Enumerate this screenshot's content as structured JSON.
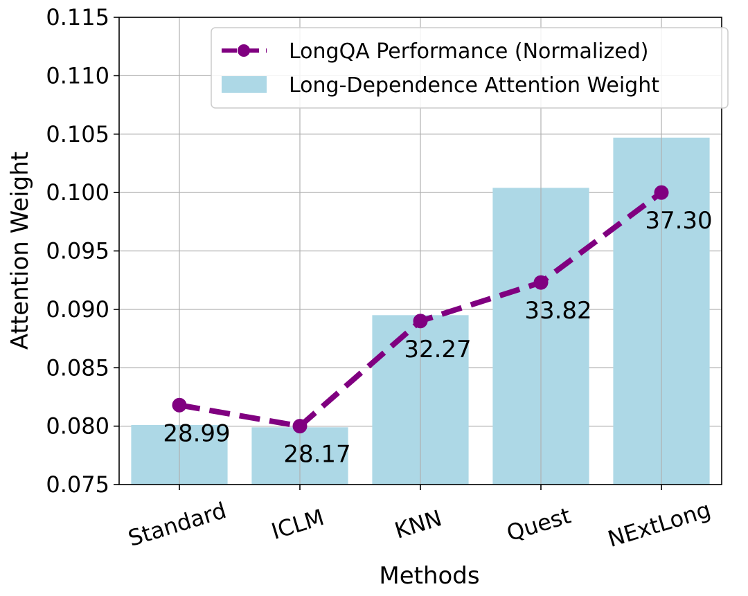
{
  "chart_data": {
    "type": "bar",
    "categories": [
      "Standard",
      "ICLM",
      "KNN",
      "Quest",
      "NExtLong"
    ],
    "xlabel": "Methods",
    "ylabel": "Attention Weight",
    "ylim": [
      0.075,
      0.115
    ],
    "yticks": [
      "0.075",
      "0.080",
      "0.085",
      "0.090",
      "0.095",
      "0.100",
      "0.105",
      "0.110",
      "0.115"
    ],
    "grid": true,
    "legend_position": "top-right",
    "series": [
      {
        "name": "Long-Dependence Attention Weight",
        "kind": "bar",
        "color": "#add8e6",
        "values": [
          0.0801,
          0.0799,
          0.0895,
          0.1004,
          0.1047
        ]
      },
      {
        "name": "LongQA Performance (Normalized)",
        "kind": "line",
        "style": "dashed",
        "marker": "circle",
        "color": "#800080",
        "values": [
          0.0818,
          0.08,
          0.089,
          0.0923,
          0.1
        ],
        "labels": [
          "28.99",
          "28.17",
          "32.27",
          "33.82",
          "37.30"
        ]
      }
    ]
  }
}
